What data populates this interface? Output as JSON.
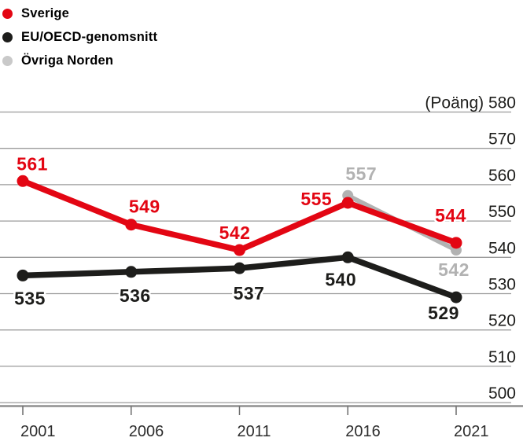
{
  "legend": {
    "items": [
      {
        "label": "Sverige",
        "color": "#e30613"
      },
      {
        "label": "EU/OECD-genomsnitt",
        "color": "#1d1d1b"
      },
      {
        "label": "Övriga Norden",
        "color": "#c9c9c9"
      }
    ]
  },
  "chart_data": {
    "type": "line",
    "title": "",
    "xlabel": "",
    "ylabel": "(Poäng)",
    "x": [
      2001,
      2006,
      2011,
      2016,
      2021
    ],
    "series": [
      {
        "name": "Sverige",
        "color": "#e30613",
        "values": [
          561,
          549,
          542,
          555,
          544
        ],
        "point_labels": [
          {
            "dx": 12,
            "dy": -14
          },
          {
            "dx": 17,
            "dy": -15
          },
          {
            "dx": -6,
            "dy": -14
          },
          {
            "dx": -40,
            "dy": 3
          },
          {
            "dx": -7,
            "dy": -27
          }
        ]
      },
      {
        "name": "EU/OECD-genomsnitt",
        "color": "#1d1d1b",
        "values": [
          535,
          536,
          537,
          540,
          529
        ],
        "point_labels": [
          {
            "dx": 9,
            "dy": 37
          },
          {
            "dx": 5,
            "dy": 38
          },
          {
            "dx": 12,
            "dy": 40
          },
          {
            "dx": -9,
            "dy": 36
          },
          {
            "dx": -16,
            "dy": 28
          }
        ]
      },
      {
        "name": "Övriga Norden",
        "color": "#b2b2b2",
        "values": [
          null,
          null,
          null,
          557,
          542
        ],
        "point_labels": [
          null,
          null,
          null,
          {
            "dx": 17,
            "dy": -20
          },
          {
            "dx": -3,
            "dy": 33
          }
        ]
      }
    ],
    "ylim": [
      500,
      580
    ],
    "y_step": 10,
    "grid": true,
    "legend_position": "top-left",
    "draw_order": [
      2,
      0,
      1
    ],
    "axis_colors": {
      "gridline": "#9b9b9b",
      "axis_line": "#8f8f8f",
      "tick": "#6b6b6b",
      "y_label": "#1d1d1b",
      "x_label": "#2d2d2d"
    }
  }
}
